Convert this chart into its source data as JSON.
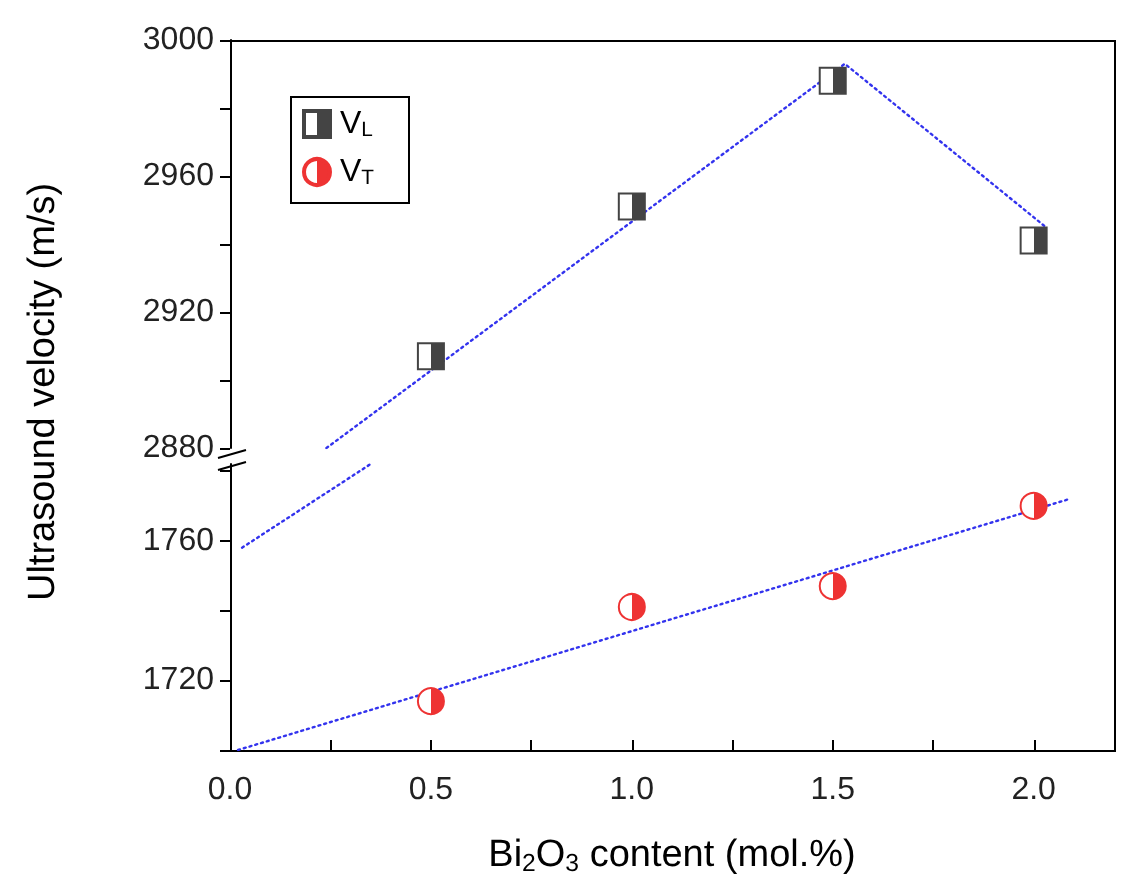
{
  "chart_data": [
    {
      "type": "scatter",
      "ylabel": "Ultrasound velocity (m/s)",
      "x": [
        0.5,
        1.0,
        1.5,
        2.0
      ],
      "xlim": [
        0,
        2.2
      ],
      "ylim": [
        2880,
        3000
      ],
      "yticks": [
        2880,
        {
          "value": 2900,
          "label": null
        },
        2920,
        {
          "value": 2940,
          "label": null
        },
        2960,
        {
          "value": 2980,
          "label": null
        },
        3000
      ],
      "tick_labels": "y",
      "legend": "top left",
      "grid": false,
      "series": [
        {
          "name": "V$_{L}$",
          "color": "#444444",
          "marker": "square",
          "values": [
            2907,
            2951,
            2988,
            2941
          ]
        },
        {
          "type": "line",
          "color": "#3333ee",
          "line_style": "dotted",
          "marker": "none",
          "x": [
            0.24,
            1.53,
            2.03
          ],
          "values": [
            2880,
            2993,
            2945
          ]
        }
      ]
    },
    {
      "type": "scatter",
      "xlabel": "Bi$_{2}$O$_{3}$ content (mol.%)",
      "x": [
        0.5,
        1.0,
        1.5,
        2.0
      ],
      "xlim": [
        0,
        2.2
      ],
      "xticks": [
        {
          "value": 0,
          "label": "0.0"
        },
        {
          "value": 0.25,
          "label": null
        },
        0.5,
        {
          "value": 0.75,
          "label": null
        },
        {
          "value": 1,
          "label": "1.0"
        },
        {
          "value": 1.25,
          "label": null
        },
        1.5,
        {
          "value": 1.75,
          "label": null
        },
        {
          "value": 2,
          "label": "2.0"
        }
      ],
      "ylim": [
        1700,
        1782
      ],
      "yticks": [
        {
          "value": 1700,
          "label": null
        },
        1720,
        {
          "value": 1740,
          "label": null
        },
        1760,
        {
          "value": 1780,
          "label": null
        }
      ],
      "legend": "top left",
      "grid": false,
      "series": [
        {
          "name": "V$_{T}$",
          "color": "#ee3333",
          "marker": "circle",
          "values": [
            1714,
            1741,
            1747,
            1770
          ]
        },
        {
          "type": "line",
          "color": "#3333ee",
          "line_style": "dotted",
          "marker": "none",
          "x": [
            0.02,
            2.09
          ],
          "values": [
            1700,
            1772
          ]
        },
        {
          "type": "line",
          "color": "#3333ee",
          "line_style": "dotted",
          "marker": "none",
          "x": [
            0.03,
            0.35
          ],
          "values": [
            1758,
            1782
          ]
        }
      ]
    }
  ]
}
